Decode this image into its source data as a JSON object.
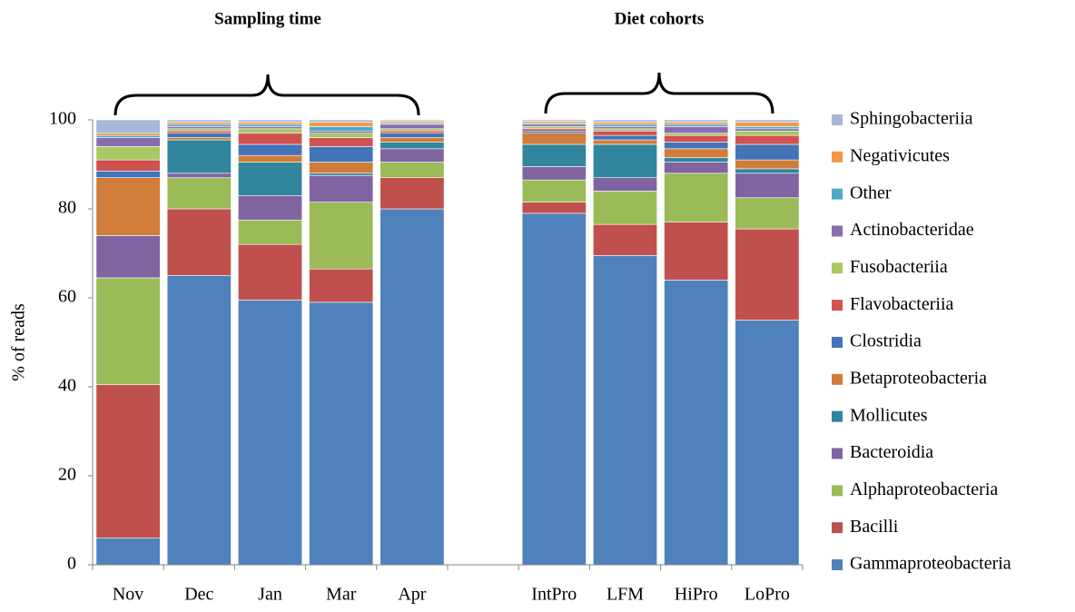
{
  "chart_data": {
    "type": "stacked_bar",
    "group_labels": [
      "Sampling time",
      "Diet cohorts"
    ],
    "y_label": "% of reads",
    "categories": [
      "Nov",
      "Dec",
      "Jan",
      "Mar",
      "Apr",
      null,
      "IntPro",
      "LFM",
      "HiPro",
      "LoPro"
    ],
    "ylim": [
      0,
      100
    ],
    "yticks": [
      0,
      20,
      40,
      60,
      80,
      100
    ],
    "legend": "right",
    "series": [
      {
        "name": "Gammaproteobacteria",
        "color": "#4f81bd",
        "values": [
          6,
          65,
          59.5,
          59,
          80,
          null,
          79,
          69.5,
          64,
          55
        ]
      },
      {
        "name": "Bacilli",
        "color": "#c0504d",
        "values": [
          34.5,
          15,
          12.5,
          7.5,
          7,
          null,
          2.5,
          7,
          13,
          20.5
        ]
      },
      {
        "name": "Alphaproteobacteria",
        "color": "#9bbb59",
        "values": [
          24,
          7,
          5.5,
          15,
          3.5,
          null,
          5,
          7.5,
          11,
          7
        ]
      },
      {
        "name": "Bacteroidia",
        "color": "#8064a2",
        "values": [
          9.5,
          1,
          5.5,
          6,
          3,
          null,
          3,
          3,
          2.5,
          5.5
        ]
      },
      {
        "name": "Mollicutes",
        "color": "#31859c",
        "values": [
          0,
          7.5,
          7.5,
          0.5,
          1.5,
          null,
          5,
          7.5,
          1,
          1
        ]
      },
      {
        "name": "Betaproteobacteria",
        "color": "#d07c3a",
        "values": [
          13,
          0.5,
          1.5,
          2.5,
          1,
          null,
          2.5,
          1,
          2,
          2
        ]
      },
      {
        "name": "Clostridia",
        "color": "#4374b7",
        "values": [
          1.5,
          1,
          2.5,
          3.5,
          1,
          null,
          0.5,
          1,
          1.5,
          3.5
        ]
      },
      {
        "name": "Flavobacteriia",
        "color": "#d0524f",
        "values": [
          2.5,
          0.5,
          2.5,
          2,
          0.5,
          null,
          0.5,
          1,
          1.5,
          2
        ]
      },
      {
        "name": "Fusobacteriia",
        "color": "#a8c862",
        "values": [
          3,
          0.5,
          1,
          1,
          0.5,
          null,
          0.5,
          0.5,
          0.5,
          1
        ]
      },
      {
        "name": "Actinobacteridae",
        "color": "#8a6bb0",
        "values": [
          2,
          0.5,
          0.5,
          0.5,
          1,
          null,
          0.5,
          0.5,
          1.5,
          0.5
        ]
      },
      {
        "name": "Other",
        "color": "#4bacc6",
        "values": [
          0.5,
          0.5,
          0.5,
          1,
          0.3,
          null,
          0.3,
          0.5,
          0.5,
          0.5
        ]
      },
      {
        "name": "Negativicutes",
        "color": "#f79646",
        "values": [
          0.5,
          0.5,
          0.5,
          1,
          0.4,
          null,
          0.4,
          0.5,
          0.5,
          1
        ]
      },
      {
        "name": "Sphingobacteriia",
        "color": "#a5b8d9",
        "values": [
          3,
          0.5,
          0.5,
          0.5,
          0.3,
          null,
          0.3,
          0.5,
          0.5,
          0.5
        ]
      }
    ]
  }
}
